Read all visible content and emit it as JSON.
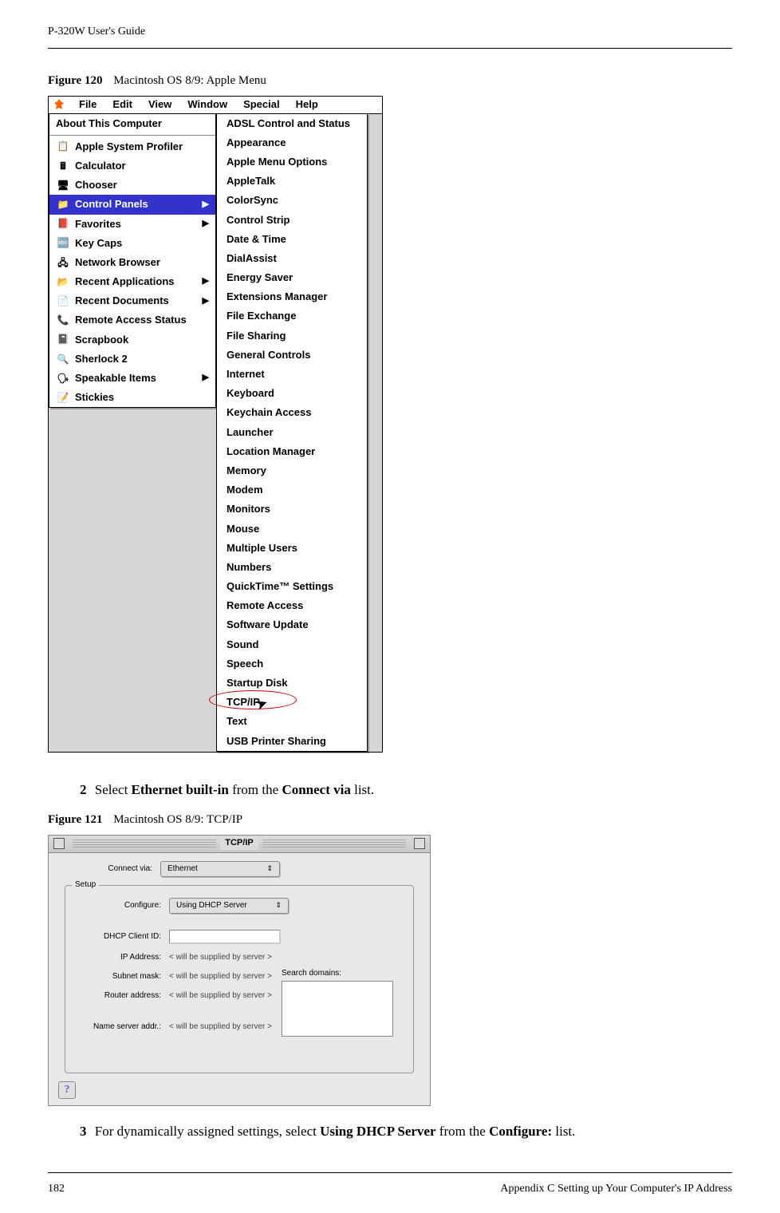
{
  "document": {
    "running_header": "P-320W User's Guide",
    "figure120_label": "Figure 120",
    "figure120_caption": "Macintosh OS 8/9: Apple Menu",
    "figure121_label": "Figure 121",
    "figure121_caption": "Macintosh OS 8/9: TCP/IP",
    "step2_num": "2",
    "step2_before": "Select ",
    "step2_bold1": "Ethernet built-in",
    "step2_mid": " from the ",
    "step2_bold2": "Connect via",
    "step2_after": " list.",
    "step3_num": "3",
    "step3_before": "For dynamically assigned settings, select ",
    "step3_bold1": "Using DHCP Server",
    "step3_mid": " from the ",
    "step3_bold2": "Configure:",
    "step3_after": " list.",
    "page_num": "182",
    "appendix": "Appendix C Setting up Your Computer's IP Address"
  },
  "menubar": {
    "items": [
      "File",
      "Edit",
      "View",
      "Window",
      "Special",
      "Help"
    ]
  },
  "apple_menu": {
    "header": "About This Computer",
    "items": [
      {
        "icon": "📋",
        "label": "Apple System Profiler",
        "arrow": false
      },
      {
        "icon": "🖩",
        "label": "Calculator",
        "arrow": false
      },
      {
        "icon": "🖥",
        "label": "Chooser",
        "arrow": false
      },
      {
        "icon": "📁",
        "label": "Control Panels",
        "arrow": true,
        "selected": true
      },
      {
        "icon": "📕",
        "label": "Favorites",
        "arrow": true
      },
      {
        "icon": "🔤",
        "label": "Key Caps",
        "arrow": false
      },
      {
        "icon": "🖧",
        "label": "Network Browser",
        "arrow": false
      },
      {
        "icon": "📂",
        "label": "Recent Applications",
        "arrow": true
      },
      {
        "icon": "📄",
        "label": "Recent Documents",
        "arrow": true
      },
      {
        "icon": "📞",
        "label": "Remote Access Status",
        "arrow": false
      },
      {
        "icon": "📓",
        "label": "Scrapbook",
        "arrow": false
      },
      {
        "icon": "🔍",
        "label": "Sherlock 2",
        "arrow": false
      },
      {
        "icon": "🗣",
        "label": "Speakable Items",
        "arrow": true
      },
      {
        "icon": "📝",
        "label": "Stickies",
        "arrow": false
      }
    ]
  },
  "control_panels": {
    "items": [
      "ADSL Control and Status",
      "Appearance",
      "Apple Menu Options",
      "AppleTalk",
      "ColorSync",
      "Control Strip",
      "Date & Time",
      "DialAssist",
      "Energy Saver",
      "Extensions Manager",
      "File Exchange",
      "File Sharing",
      "General Controls",
      "Internet",
      "Keyboard",
      "Keychain Access",
      "Launcher",
      "Location Manager",
      "Memory",
      "Modem",
      "Monitors",
      "Mouse",
      "Multiple Users",
      "Numbers",
      "QuickTime™ Settings",
      "Remote Access",
      "Software Update",
      "Sound",
      "Speech",
      "Startup Disk"
    ],
    "tcp_item": "TCP/IP",
    "after_items": [
      "Text",
      "USB Printer Sharing"
    ]
  },
  "tcpip": {
    "title": "TCP/IP",
    "connect_via_label": "Connect via:",
    "connect_via_value": "Ethernet",
    "setup_legend": "Setup",
    "configure_label": "Configure:",
    "configure_value": "Using DHCP Server",
    "dhcp_client_label": "DHCP Client ID:",
    "ip_label": "IP Address:",
    "subnet_label": "Subnet mask:",
    "router_label": "Router address:",
    "name_server_label": "Name server addr.:",
    "supplied_text": "< will be supplied by server >",
    "search_domains_label": "Search domains:"
  }
}
